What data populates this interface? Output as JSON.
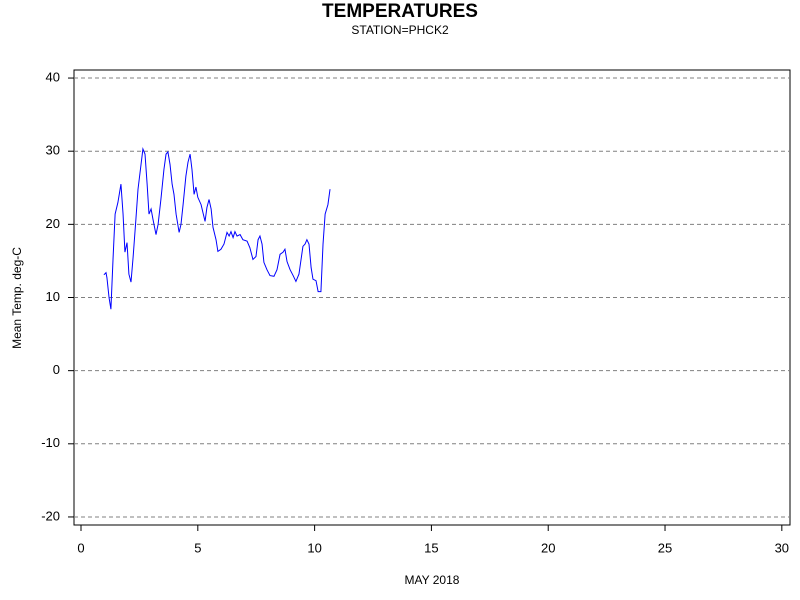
{
  "chart_data": {
    "type": "line",
    "title": "TEMPERATURES",
    "subtitle": "STATION=PHCK2",
    "x_label": "MAY 2018",
    "y_label": "Mean Temp. deg-C",
    "xlim": [
      -0.3,
      30.35
    ],
    "ylim": [
      -21.1,
      41.1
    ],
    "xticks": [
      0,
      5,
      10,
      15,
      20,
      25,
      30
    ],
    "yticks": [
      -20,
      -10,
      0,
      10,
      20,
      30,
      40
    ],
    "grid": true,
    "series": [
      {
        "name": "Mean Temp",
        "color": "#0000ff",
        "x": [
          0.98,
          1.07,
          1.11,
          1.2,
          1.28,
          1.37,
          1.46,
          1.58,
          1.71,
          1.8,
          1.88,
          1.97,
          2.05,
          2.14,
          2.23,
          2.35,
          2.44,
          2.57,
          2.65,
          2.74,
          2.83,
          2.91,
          3.0,
          3.08,
          3.21,
          3.3,
          3.42,
          3.55,
          3.64,
          3.72,
          3.81,
          3.9,
          3.98,
          4.07,
          4.2,
          4.28,
          4.37,
          4.49,
          4.58,
          4.67,
          4.75,
          4.84,
          4.92,
          5.0,
          5.14,
          5.22,
          5.31,
          5.39,
          5.48,
          5.57,
          5.65,
          5.78,
          5.86,
          5.99,
          6.12,
          6.25,
          6.34,
          6.42,
          6.51,
          6.59,
          6.68,
          6.81,
          6.93,
          7.11,
          7.23,
          7.36,
          7.49,
          7.58,
          7.66,
          7.75,
          7.83,
          7.96,
          8.09,
          8.26,
          8.39,
          8.52,
          8.65,
          8.73,
          8.82,
          8.95,
          9.08,
          9.2,
          9.33,
          9.42,
          9.5,
          9.59,
          9.67,
          9.76,
          9.85,
          9.93,
          10.06,
          10.15,
          10.27,
          10.36,
          10.45,
          10.57,
          10.66
        ],
        "values": [
          13.1,
          13.4,
          12.7,
          10,
          8.4,
          15.2,
          21.4,
          23,
          25.5,
          21.4,
          16.2,
          17.5,
          13.2,
          12.1,
          15.5,
          20.7,
          24.8,
          28.2,
          30.3,
          29.6,
          25.5,
          21.4,
          22.1,
          20.7,
          18.6,
          20,
          23.4,
          27.5,
          29.6,
          29.9,
          28.2,
          25.5,
          24.1,
          21.4,
          18.9,
          20,
          22.7,
          26.6,
          28.5,
          29.6,
          27.5,
          24.1,
          25.1,
          23.7,
          22.7,
          21.6,
          20.4,
          22.3,
          23.4,
          22.1,
          19.6,
          17.9,
          16.3,
          16.6,
          17.3,
          18.9,
          18.4,
          19,
          18.2,
          19,
          18.4,
          18.6,
          17.9,
          17.7,
          16.8,
          15.2,
          15.6,
          17.9,
          18.4,
          17.3,
          14.8,
          13.8,
          13,
          12.9,
          13.8,
          15.9,
          16.2,
          16.6,
          14.9,
          13.8,
          13,
          12.2,
          13.2,
          15.2,
          17,
          17.3,
          17.9,
          17.3,
          14.1,
          12.5,
          12.3,
          10.8,
          10.8,
          17.3,
          21.4,
          22.7,
          24.8
        ]
      }
    ]
  }
}
